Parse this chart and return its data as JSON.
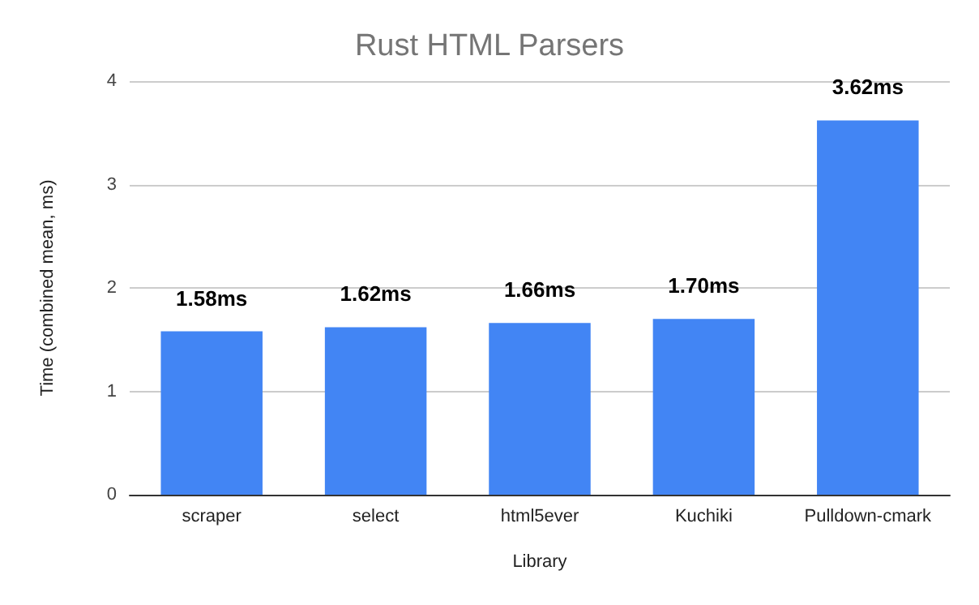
{
  "chart_data": {
    "type": "bar",
    "title": "Rust HTML Parsers",
    "xlabel": "Library",
    "ylabel": "Time (combined mean, ms)",
    "categories": [
      "scraper",
      "select",
      "html5ever",
      "Kuchiki",
      "Pulldown-cmark"
    ],
    "values": [
      1.58,
      1.62,
      1.66,
      1.7,
      3.62
    ],
    "value_labels": [
      "1.58ms",
      "1.62ms",
      "1.66ms",
      "1.70ms",
      "3.62ms"
    ],
    "color": "#4285f4",
    "ylim": [
      0,
      4
    ],
    "yticks": [
      0,
      1,
      2,
      3,
      4
    ],
    "grid": "y"
  }
}
